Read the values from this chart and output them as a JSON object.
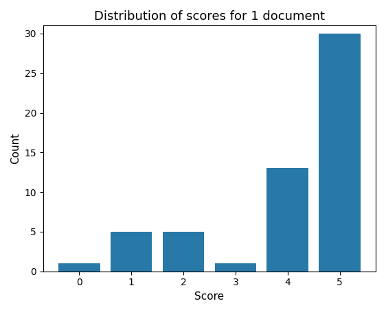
{
  "scores": [
    0,
    1,
    2,
    3,
    4,
    5
  ],
  "counts": [
    1,
    5,
    5,
    1,
    13,
    30
  ],
  "bar_color": "#2878a8",
  "title": "Distribution of scores for 1 document",
  "xlabel": "Score",
  "ylabel": "Count",
  "ylim": [
    0,
    31
  ],
  "yticks": [
    0,
    5,
    10,
    15,
    20,
    25,
    30
  ],
  "title_fontsize": 13,
  "label_fontsize": 11,
  "tick_fontsize": 10,
  "bar_width": 0.8
}
